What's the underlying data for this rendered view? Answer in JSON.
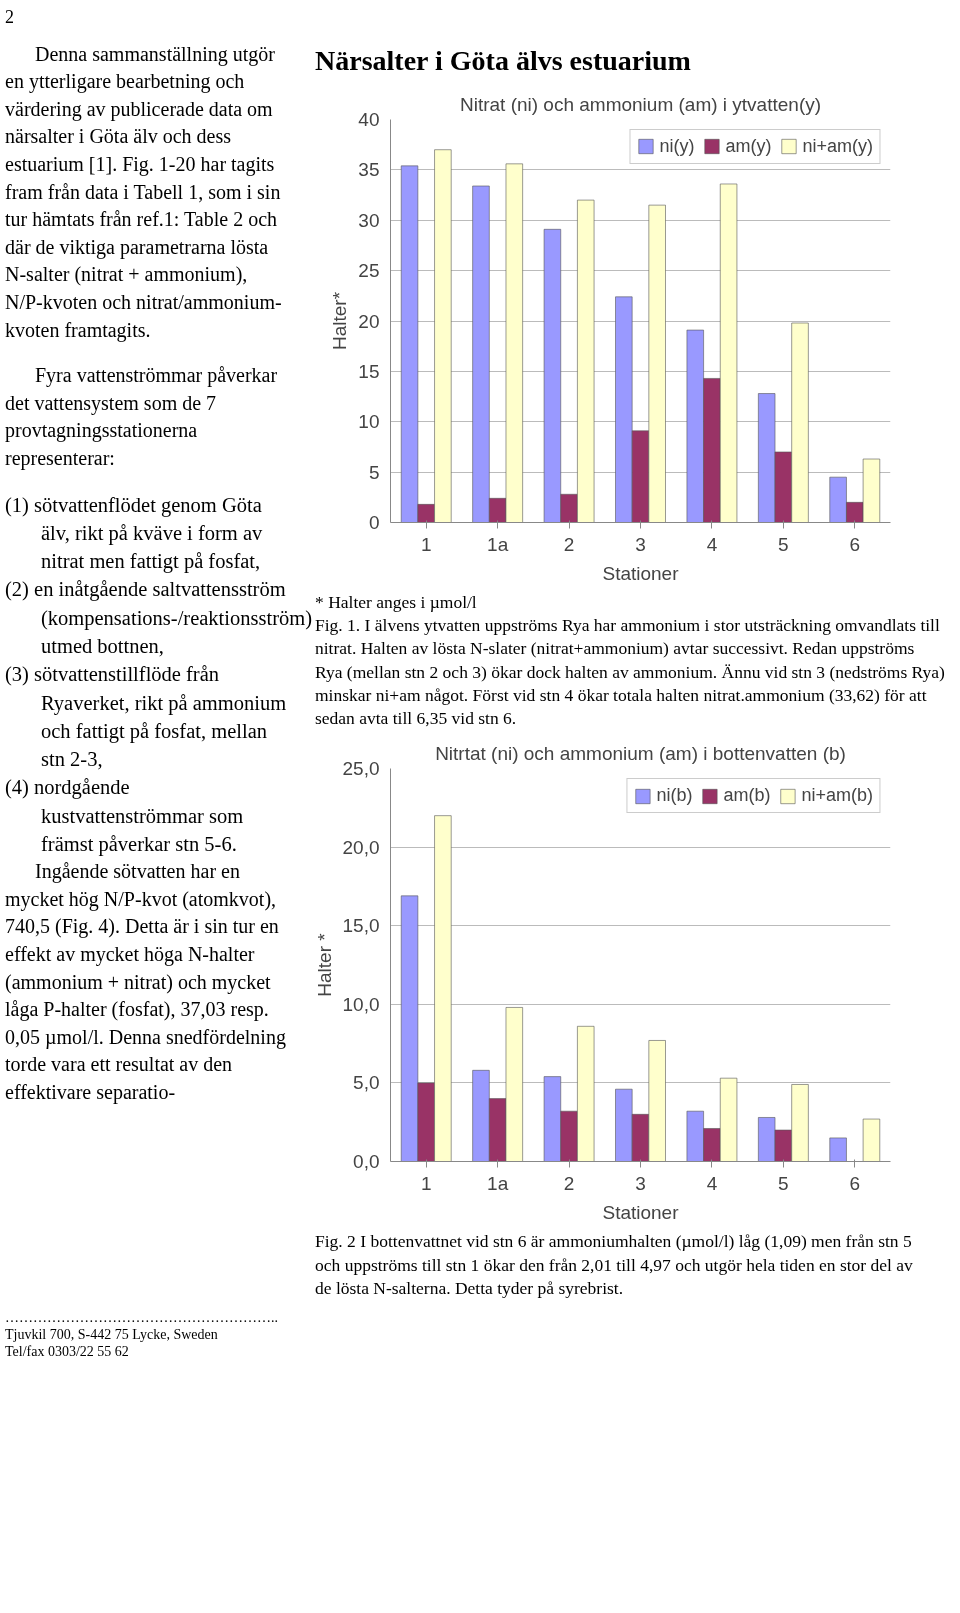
{
  "chart_data": [
    {
      "type": "bar",
      "title": "Nitrat (ni) och ammonium (am) i ytvatten(y)",
      "xlabel": "Stationer",
      "ylabel": "Halter*",
      "categories": [
        "1",
        "1a",
        "2",
        "3",
        "4",
        "5",
        "6"
      ],
      "series": [
        {
          "name": "ni(y)",
          "color": "#9999ff",
          "values": [
            35.4,
            33.4,
            29.1,
            22.4,
            19.1,
            12.8,
            4.5
          ]
        },
        {
          "name": "am(y)",
          "color": "#993366",
          "values": [
            1.8,
            2.4,
            2.8,
            9.1,
            14.3,
            7.0,
            2.0
          ]
        },
        {
          "name": "ni+am(y)",
          "color": "#ffffcc",
          "values": [
            37.0,
            35.6,
            32.0,
            31.5,
            33.6,
            19.8,
            6.3
          ]
        }
      ],
      "ylim": [
        0,
        40
      ],
      "yticks": [
        0,
        5,
        10,
        15,
        20,
        25,
        30,
        35,
        40
      ],
      "grid": "y",
      "legend": "top right",
      "annotations": [
        "2",
        "Närsalter i Göta älvs estuarium",
        "* Halter anges i µmol/l",
        "Fig. 1.  I älvens ytvatten uppströms Rya har ammonium i stor utsträckning omvandlats till nitrat. Halten av lösta N-slater (nitrat+ammonium) avtar successivt. Redan uppströms Rya (mellan stn 2 och 3) ökar dock halten av ammonium. Ännu vid stn 3 (nedströms Rya) minskar ni+am något. Först vid stn 4 ökar totala halten nitrat.ammonium (33,62) för att sedan avta till 6,35 vid stn 6.",
        "Denna sammanställning utgör en ytterligare bearbetning och värdering av publicerade data om närsalter i Göta älv och dess estuarium [1]. Fig. 1-20 har tagits fram från data i Tabell 1, som i sin tur hämtats från ref.1: Table 2 och där de viktiga parametrarna lösta N-salter (nitrat + ammonium), N/P-kvoten och nitrat/ammonium-kvoten framtagits.",
        "Fyra vattenströmmar påverkar det vattensystem som de 7 provtagningsstationerna representerar:",
        "(1) sötvattenflödet genom Göta älv, rikt på kväve i form av nitrat men fattigt på fosfat,",
        "(2) en inåtgående saltvattensström (kompensations-/reaktionsström) utmed bottnen,",
        "(3) sötvattenstillflöde från Ryaverket, rikt på ammonium och fattigt på fosfat, mellan stn 2-3,",
        "(4) nordgående kustvattenströmmar som främst påverkar stn 5-6.",
        "Ingående sötvatten har en mycket hög N/P-kvot (atomkvot), 740,5 (Fig. 4). Detta är i sin tur en effekt av mycket höga N-halter (ammonium + nitrat) och mycket låga P-halter (fosfat), 37,03 resp. 0,05 µmol/l. Denna snedfördelning torde vara ett resultat av den effektivare separatio-"
      ]
    },
    {
      "type": "bar",
      "title": "Nitrtat (ni) och ammonium (am) i bottenvatten (b)",
      "xlabel": "Stationer",
      "ylabel": "Halter *",
      "categories": [
        "1",
        "1a",
        "2",
        "3",
        "4",
        "5",
        "6"
      ],
      "series": [
        {
          "name": "ni(b)",
          "color": "#9999ff",
          "values": [
            16.9,
            5.8,
            5.4,
            4.6,
            3.2,
            2.8,
            1.5
          ]
        },
        {
          "name": "am(b)",
          "color": "#993366",
          "values": [
            5.0,
            4.0,
            3.2,
            3.0,
            2.1,
            2.0,
            null
          ]
        },
        {
          "name": "ni+am(b)",
          "color": "#ffffcc",
          "values": [
            22.0,
            9.8,
            8.6,
            7.7,
            5.3,
            4.9,
            2.7
          ]
        }
      ],
      "ylim": [
        0,
        25
      ],
      "yticks": [
        {
          "value": 0,
          "label": "0,0"
        },
        {
          "value": 5,
          "label": "5,0"
        },
        {
          "value": 10,
          "label": "10,0"
        },
        {
          "value": 15,
          "label": "15,0"
        },
        {
          "value": 20,
          "label": "20,0"
        },
        {
          "value": 25,
          "label": "25,0"
        }
      ],
      "grid": "y",
      "legend": "top right",
      "annotations": [
        "Fig. 2  I bottenvattnet vid stn 6 är ammoniumhalten (µmol/l) låg (1,09) men från stn 5 och uppströms till stn 1 ökar den från 2,01 till 4,97 och utgör hela tiden en stor del av de lösta N-salterna. Detta tyder på syrebrist.",
        "…………………………………………………..",
        "Tjuvkil 700, S-442 75 Lycke, Sweden",
        "Tel/fax 0303/22 55 62"
      ]
    }
  ]
}
